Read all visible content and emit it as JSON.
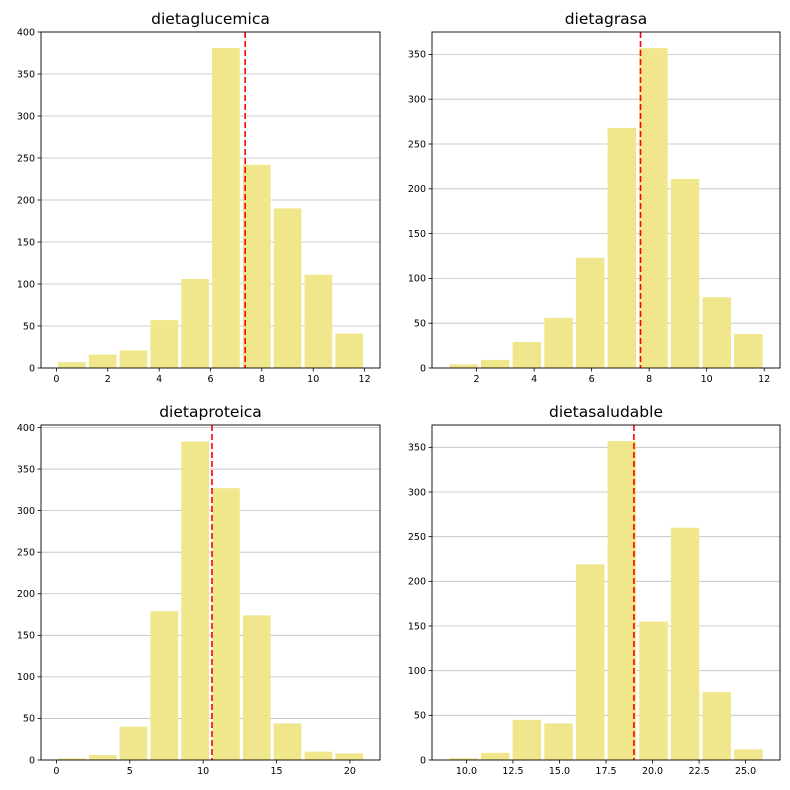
{
  "figure": {
    "background": "#ffffff"
  },
  "style": {
    "bar_color": "#f0e68c",
    "mean_line_color": "#ff0000",
    "grid_color": "#bfbfbf",
    "axis_color": "#000000"
  },
  "chart_data": [
    {
      "type": "bar",
      "title": "dietaglucemica",
      "xlabel": "",
      "ylabel": "",
      "grid": "y",
      "bins": [
        [
          0,
          1.2
        ],
        [
          1.2,
          2.4
        ],
        [
          2.4,
          3.6
        ],
        [
          3.6,
          4.8
        ],
        [
          4.8,
          6.0
        ],
        [
          6.0,
          7.2
        ],
        [
          7.2,
          8.4
        ],
        [
          8.4,
          9.6
        ],
        [
          9.6,
          10.8
        ],
        [
          10.8,
          12.0
        ]
      ],
      "values": [
        7,
        16,
        21,
        57,
        106,
        381,
        242,
        190,
        111,
        41
      ],
      "mean_line": 7.35,
      "xlim": [
        -0.6,
        12.6
      ],
      "ylim": [
        0,
        400
      ],
      "xticks": [
        0,
        2,
        4,
        6,
        8,
        10,
        12
      ],
      "xtick_labels": [
        "0",
        "2",
        "4",
        "6",
        "8",
        "10",
        "12"
      ],
      "yticks": [
        0,
        50,
        100,
        150,
        200,
        250,
        300,
        350,
        400
      ],
      "ytick_labels": [
        "0",
        "50",
        "100",
        "150",
        "200",
        "250",
        "300",
        "350",
        "400"
      ]
    },
    {
      "type": "bar",
      "title": "dietagrasa",
      "xlabel": "",
      "ylabel": "",
      "grid": "y",
      "bins": [
        [
          1,
          2.1
        ],
        [
          2.1,
          3.2
        ],
        [
          3.2,
          4.3
        ],
        [
          4.3,
          5.4
        ],
        [
          5.4,
          6.5
        ],
        [
          6.5,
          7.6
        ],
        [
          7.6,
          8.7
        ],
        [
          8.7,
          9.8
        ],
        [
          9.8,
          10.9
        ],
        [
          10.9,
          12.0
        ]
      ],
      "values": [
        4,
        9,
        29,
        56,
        123,
        268,
        357,
        211,
        79,
        38
      ],
      "mean_line": 7.7,
      "xlim": [
        0.45,
        12.55
      ],
      "ylim": [
        0,
        375
      ],
      "xticks": [
        2,
        4,
        6,
        8,
        10,
        12
      ],
      "xtick_labels": [
        "2",
        "4",
        "6",
        "8",
        "10",
        "12"
      ],
      "yticks": [
        0,
        50,
        100,
        150,
        200,
        250,
        300,
        350
      ],
      "ytick_labels": [
        "0",
        "50",
        "100",
        "150",
        "200",
        "250",
        "300",
        "350"
      ]
    },
    {
      "type": "bar",
      "title": "dietaproteica",
      "xlabel": "",
      "ylabel": "",
      "grid": "y",
      "bins": [
        [
          0,
          2.1
        ],
        [
          2.1,
          4.2
        ],
        [
          4.2,
          6.3
        ],
        [
          6.3,
          8.4
        ],
        [
          8.4,
          10.5
        ],
        [
          10.5,
          12.6
        ],
        [
          12.6,
          14.7
        ],
        [
          14.7,
          16.8
        ],
        [
          16.8,
          18.9
        ],
        [
          18.9,
          21.0
        ]
      ],
      "values": [
        2,
        6,
        40,
        179,
        383,
        327,
        174,
        44,
        10,
        8
      ],
      "mean_line": 10.6,
      "xlim": [
        -1.05,
        22.05
      ],
      "ylim": [
        0,
        403
      ],
      "xticks": [
        0,
        5,
        10,
        15,
        20
      ],
      "xtick_labels": [
        "0",
        "5",
        "10",
        "15",
        "20"
      ],
      "yticks": [
        0,
        50,
        100,
        150,
        200,
        250,
        300,
        350,
        400
      ],
      "ytick_labels": [
        "0",
        "50",
        "100",
        "150",
        "200",
        "250",
        "300",
        "350",
        "400"
      ]
    },
    {
      "type": "bar",
      "title": "dietasaludable",
      "xlabel": "",
      "ylabel": "",
      "grid": "y",
      "bins": [
        [
          9,
          10.7
        ],
        [
          10.7,
          12.4
        ],
        [
          12.4,
          14.1
        ],
        [
          14.1,
          15.8
        ],
        [
          15.8,
          17.5
        ],
        [
          17.5,
          19.2
        ],
        [
          19.2,
          20.9
        ],
        [
          20.9,
          22.6
        ],
        [
          22.6,
          24.3
        ],
        [
          24.3,
          26.0
        ]
      ],
      "values": [
        2,
        8,
        45,
        41,
        219,
        357,
        155,
        260,
        76,
        12
      ],
      "mean_line": 19.0,
      "xlim": [
        8.15,
        26.85
      ],
      "ylim": [
        0,
        375
      ],
      "xticks": [
        10.0,
        12.5,
        15.0,
        17.5,
        20.0,
        22.5,
        25.0
      ],
      "xtick_labels": [
        "10.0",
        "12.5",
        "15.0",
        "17.5",
        "20.0",
        "22.5",
        "25.0"
      ],
      "yticks": [
        0,
        50,
        100,
        150,
        200,
        250,
        300,
        350
      ],
      "ytick_labels": [
        "0",
        "50",
        "100",
        "150",
        "200",
        "250",
        "300",
        "350"
      ]
    }
  ]
}
